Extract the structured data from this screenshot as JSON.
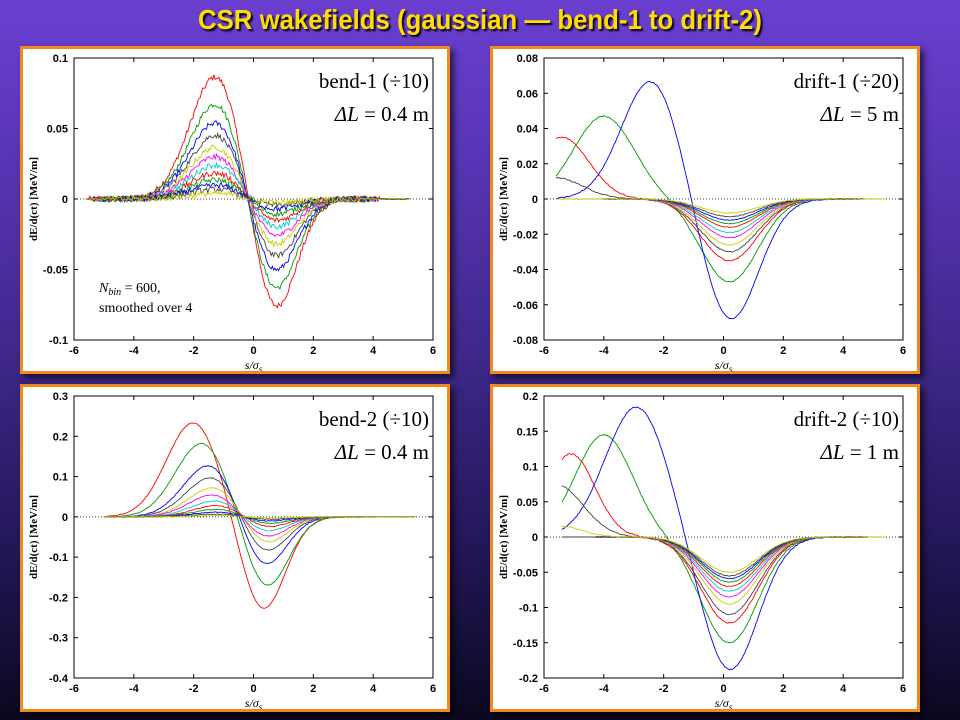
{
  "title": "CSR wakefields (gaussian — bend-1 to drift-2)",
  "colors": [
    "#ff0000",
    "#009900",
    "#0000ff",
    "#444444",
    "#cccc00",
    "#ff00ff",
    "#00cccc",
    "#ff0000",
    "#009900",
    "#0000ff",
    "#444444",
    "#cccc00"
  ],
  "chart_data": [
    {
      "type": "line",
      "label_line1": "bend-1 (÷10)",
      "label_line2": "ΔL = 0.4 m",
      "annotation_line1": "N",
      "annotation_sub": "bin",
      "annotation_rest": " = 600,",
      "annotation_line2": "smoothed over 4",
      "xlabel": "s/σs",
      "ylabel": "dE/d(ct) [MeV/m]",
      "xlim": [
        -6,
        6
      ],
      "ylim": [
        -0.1,
        0.1
      ],
      "xticks": [
        -6,
        -4,
        -2,
        0,
        2,
        4,
        6
      ],
      "yticks": [
        -0.1,
        -0.05,
        0,
        0.05,
        0.1
      ],
      "yticklabels": [
        "-0.1",
        "-0.05",
        "0",
        "0.05",
        "0.1"
      ],
      "x_start": -5.6,
      "x_end": 5.2,
      "series": [
        {
          "kind": "bend",
          "A": 0.09,
          "B": 0.085,
          "noise": 0.002
        },
        {
          "kind": "bend",
          "A": 0.07,
          "B": 0.07,
          "noise": 0.002
        },
        {
          "kind": "bend",
          "A": 0.056,
          "B": 0.056,
          "noise": 0.002
        },
        {
          "kind": "bend",
          "A": 0.047,
          "B": 0.045,
          "noise": 0.002
        },
        {
          "kind": "bend",
          "A": 0.038,
          "B": 0.036,
          "noise": 0.002
        },
        {
          "kind": "bend",
          "A": 0.031,
          "B": 0.029,
          "noise": 0.002
        },
        {
          "kind": "bend",
          "A": 0.025,
          "B": 0.022,
          "noise": 0.002
        },
        {
          "kind": "bend",
          "A": 0.019,
          "B": 0.017,
          "noise": 0.002
        },
        {
          "kind": "bend",
          "A": 0.014,
          "B": 0.012,
          "noise": 0.002
        },
        {
          "kind": "bend",
          "A": 0.01,
          "B": 0.008,
          "noise": 0.002
        },
        {
          "kind": "bend",
          "A": 0.007,
          "B": 0.005,
          "noise": 0.002
        },
        {
          "kind": "bend",
          "A": 0.004,
          "B": 0.003,
          "noise": 0.002
        }
      ]
    },
    {
      "type": "line",
      "label_line1": "drift-1 (÷20)",
      "label_line2": "ΔL = 5 m",
      "xlabel": "s/σs",
      "ylabel": "dE/d(ct) [MeV/m]",
      "xlim": [
        -6,
        6
      ],
      "ylim": [
        -0.08,
        0.08
      ],
      "xticks": [
        -6,
        -4,
        -2,
        0,
        2,
        4,
        6
      ],
      "yticks": [
        -0.08,
        -0.06,
        -0.04,
        -0.02,
        0,
        0.02,
        0.04,
        0.06,
        0.08
      ],
      "yticklabels": [
        "-0.08",
        "-0.06",
        "-0.04",
        "-0.02",
        "0",
        "0.02",
        "0.04",
        "0.06",
        "0.08"
      ],
      "x_start": -5.6,
      "x_end": 5.4,
      "series": [
        {
          "kind": "drift",
          "P": 0.035,
          "mu": -5.4,
          "sig": 0.9,
          "neg": 0.035,
          "noise": 0.0003
        },
        {
          "kind": "drift",
          "P": 0.047,
          "mu": -4.0,
          "sig": 1.0,
          "neg": 0.047,
          "noise": 0.0003
        },
        {
          "kind": "drift",
          "P": 0.068,
          "mu": -2.4,
          "sig": 1.0,
          "neg": 0.07,
          "noise": 0.0003
        },
        {
          "kind": "drift",
          "P": 0.012,
          "mu": -5.6,
          "sig": 0.9,
          "neg": 0.03,
          "noise": 0.0003
        },
        {
          "kind": "drift",
          "P": 0.0,
          "mu": -6.0,
          "sig": 1.0,
          "neg": 0.026,
          "noise": 0.0002
        },
        {
          "kind": "drift",
          "P": 0.0,
          "mu": -6.0,
          "sig": 1.0,
          "neg": 0.022,
          "noise": 0.0002
        },
        {
          "kind": "drift",
          "P": 0.0,
          "mu": -6.0,
          "sig": 1.0,
          "neg": 0.019,
          "noise": 0.0002
        },
        {
          "kind": "drift",
          "P": 0.0,
          "mu": -6.0,
          "sig": 1.0,
          "neg": 0.016,
          "noise": 0.0002
        },
        {
          "kind": "drift",
          "P": 0.0,
          "mu": -6.0,
          "sig": 1.0,
          "neg": 0.014,
          "noise": 0.0002
        },
        {
          "kind": "drift",
          "P": 0.0,
          "mu": -6.0,
          "sig": 1.0,
          "neg": 0.012,
          "noise": 0.0002
        },
        {
          "kind": "drift",
          "P": 0.0,
          "mu": -6.0,
          "sig": 1.0,
          "neg": 0.01,
          "noise": 0.0002
        },
        {
          "kind": "drift",
          "P": 0.0,
          "mu": -6.0,
          "sig": 1.0,
          "neg": 0.008,
          "noise": 0.0002
        }
      ]
    },
    {
      "type": "line",
      "label_line1": "bend-2 (÷10)",
      "label_line2": "ΔL = 0.4 m",
      "xlabel": "s/σs",
      "ylabel": "dE/d(ct) [MeV/m]",
      "xlim": [
        -6,
        6
      ],
      "ylim": [
        -0.4,
        0.3
      ],
      "xticks": [
        -6,
        -4,
        -2,
        0,
        2,
        4,
        6
      ],
      "yticks": [
        -0.4,
        -0.3,
        -0.2,
        -0.1,
        0,
        0.1,
        0.2,
        0.3
      ],
      "yticklabels": [
        "-0.4",
        "-0.3",
        "-0.2",
        "-0.1",
        "0",
        "0.1",
        "0.2",
        "0.3"
      ],
      "x_start": -5.0,
      "x_end": 5.4,
      "series": [
        {
          "kind": "bend",
          "A": 0.235,
          "B": 0.235,
          "noise": 0.001,
          "muP": -2.0,
          "muN": 0.3
        },
        {
          "kind": "bend",
          "A": 0.185,
          "B": 0.18,
          "noise": 0.001,
          "muP": -1.7,
          "muN": 0.4
        },
        {
          "kind": "bend",
          "A": 0.135,
          "B": 0.135,
          "noise": 0.001,
          "muP": -1.4,
          "muN": 0.3
        },
        {
          "kind": "bend",
          "A": 0.105,
          "B": 0.1,
          "noise": 0.001,
          "muP": -1.3,
          "muN": 0.3
        },
        {
          "kind": "bend",
          "A": 0.08,
          "B": 0.078,
          "noise": 0.001,
          "muP": -1.2,
          "muN": 0.3
        },
        {
          "kind": "bend",
          "A": 0.06,
          "B": 0.06,
          "noise": 0.001,
          "muP": -1.2,
          "muN": 0.3
        },
        {
          "kind": "bend",
          "A": 0.045,
          "B": 0.045,
          "noise": 0.001,
          "muP": -1.1,
          "muN": 0.3
        },
        {
          "kind": "bend",
          "A": 0.033,
          "B": 0.033,
          "noise": 0.001,
          "muP": -1.0,
          "muN": 0.3
        },
        {
          "kind": "bend",
          "A": 0.022,
          "B": 0.022,
          "noise": 0.001,
          "muP": -1.0,
          "muN": 0.3
        },
        {
          "kind": "bend",
          "A": 0.014,
          "B": 0.014,
          "noise": 0.001,
          "muP": -1.0,
          "muN": 0.3
        },
        {
          "kind": "bend",
          "A": 0.008,
          "B": 0.008,
          "noise": 0.001,
          "muP": -1.0,
          "muN": 0.3
        },
        {
          "kind": "bend",
          "A": 0.004,
          "B": 0.004,
          "noise": 0.001,
          "muP": -1.0,
          "muN": 0.3
        }
      ]
    },
    {
      "type": "line",
      "label_line1": "drift-2 (÷10)",
      "label_line2": "ΔL = 1 m",
      "xlabel": "s/σs",
      "ylabel": "dE/d(ct) [MeV/m]",
      "xlim": [
        -6,
        6
      ],
      "ylim": [
        -0.2,
        0.2
      ],
      "xticks": [
        -6,
        -4,
        -2,
        0,
        2,
        4,
        6
      ],
      "yticks": [
        -0.2,
        -0.15,
        -0.1,
        -0.05,
        0,
        0.05,
        0.1,
        0.15,
        0.2
      ],
      "yticklabels": [
        "-0.2",
        "-0.15",
        "-0.1",
        "-0.05",
        "0",
        "0.05",
        "0.1",
        "0.15",
        "0.2"
      ],
      "x_start": -5.4,
      "x_end": 5.4,
      "series": [
        {
          "kind": "drift",
          "P": 0.118,
          "mu": -5.1,
          "sig": 0.8,
          "neg": 0.122,
          "noise": 0.0008
        },
        {
          "kind": "drift",
          "P": 0.145,
          "mu": -4.0,
          "sig": 0.95,
          "neg": 0.15,
          "noise": 0.0008
        },
        {
          "kind": "drift",
          "P": 0.185,
          "mu": -2.9,
          "sig": 1.05,
          "neg": 0.19,
          "noise": 0.0008
        },
        {
          "kind": "drift",
          "P": 0.075,
          "mu": -5.6,
          "sig": 0.9,
          "neg": 0.11,
          "noise": 0.0006
        },
        {
          "kind": "drift",
          "P": 0.0,
          "mu": -6.0,
          "sig": 1.0,
          "neg": 0.095,
          "noise": 0.0005
        },
        {
          "kind": "drift",
          "P": 0.0,
          "mu": -6.0,
          "sig": 1.0,
          "neg": 0.085,
          "noise": 0.0005
        },
        {
          "kind": "drift",
          "P": 0.0,
          "mu": -6.0,
          "sig": 1.0,
          "neg": 0.077,
          "noise": 0.0005
        },
        {
          "kind": "drift",
          "P": 0.0,
          "mu": -6.0,
          "sig": 1.0,
          "neg": 0.07,
          "noise": 0.0005
        },
        {
          "kind": "drift",
          "P": 0.0,
          "mu": -6.0,
          "sig": 1.0,
          "neg": 0.064,
          "noise": 0.0005
        },
        {
          "kind": "drift",
          "P": 0.0,
          "mu": -6.0,
          "sig": 1.0,
          "neg": 0.059,
          "noise": 0.0005
        },
        {
          "kind": "drift",
          "P": 0.0,
          "mu": -6.0,
          "sig": 1.0,
          "neg": 0.055,
          "noise": 0.0005
        },
        {
          "kind": "drift",
          "P": 0.015,
          "mu": -5.4,
          "sig": 0.7,
          "neg": 0.05,
          "noise": 0.0005
        }
      ]
    }
  ]
}
